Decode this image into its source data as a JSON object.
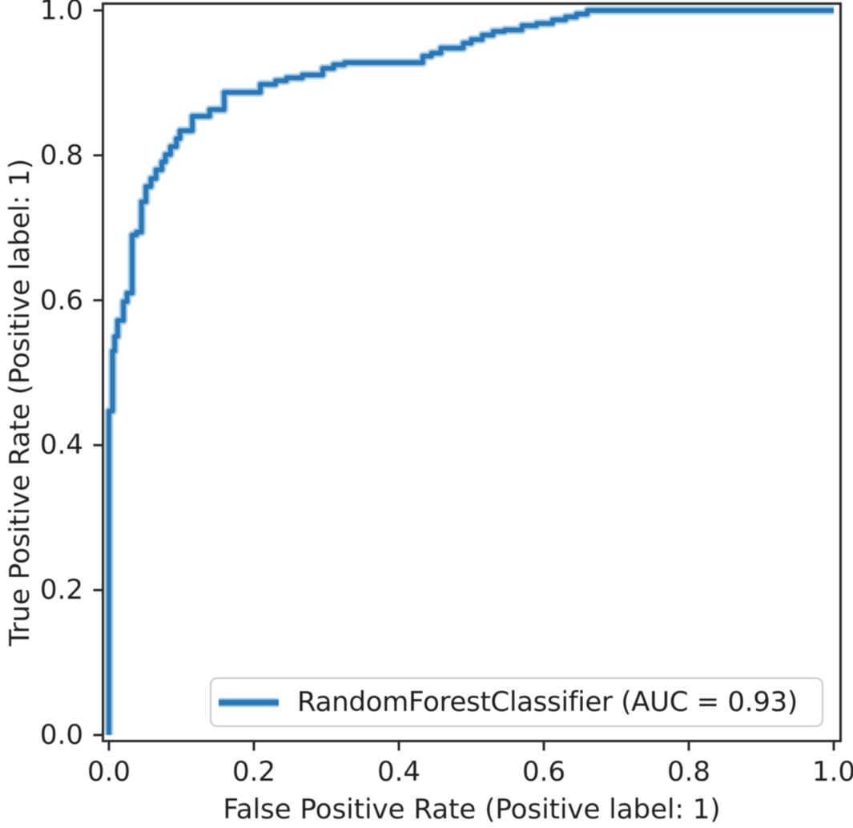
{
  "figure": {
    "background": "#ffffff",
    "text_color": "#1f1f1f",
    "spine_color": "#2a2a2a"
  },
  "chart_data": {
    "type": "line",
    "subtype": "roc-curve",
    "title": "",
    "xlabel": "False Positive Rate (Positive label: 1)",
    "ylabel": "True Positive Rate (Positive label: 1)",
    "xlim": [
      0,
      1
    ],
    "ylim": [
      0,
      1
    ],
    "grid": false,
    "x_tick_labels": [
      "0.0",
      "0.2",
      "0.4",
      "0.6",
      "0.8",
      "1.0"
    ],
    "y_tick_labels": [
      "0.0",
      "0.2",
      "0.4",
      "0.6",
      "0.8",
      "1.0"
    ],
    "legend": {
      "position": "lower right",
      "entries": [
        {
          "label": "RandomForestClassifier (AUC = 0.93)",
          "color": "#1f77b4"
        }
      ]
    },
    "series": [
      {
        "name": "RandomForestClassifier",
        "auc": 0.93,
        "color": "#1f77b4",
        "points": [
          [
            0.0,
            0.0
          ],
          [
            0.0,
            0.447
          ],
          [
            0.005,
            0.447
          ],
          [
            0.005,
            0.53
          ],
          [
            0.008,
            0.53
          ],
          [
            0.008,
            0.55
          ],
          [
            0.012,
            0.55
          ],
          [
            0.012,
            0.572
          ],
          [
            0.02,
            0.572
          ],
          [
            0.02,
            0.598
          ],
          [
            0.025,
            0.598
          ],
          [
            0.025,
            0.61
          ],
          [
            0.032,
            0.61
          ],
          [
            0.032,
            0.69
          ],
          [
            0.038,
            0.69
          ],
          [
            0.038,
            0.694
          ],
          [
            0.045,
            0.694
          ],
          [
            0.045,
            0.736
          ],
          [
            0.051,
            0.736
          ],
          [
            0.051,
            0.757
          ],
          [
            0.058,
            0.757
          ],
          [
            0.058,
            0.768
          ],
          [
            0.065,
            0.768
          ],
          [
            0.065,
            0.78
          ],
          [
            0.073,
            0.78
          ],
          [
            0.073,
            0.791
          ],
          [
            0.078,
            0.791
          ],
          [
            0.078,
            0.801
          ],
          [
            0.085,
            0.801
          ],
          [
            0.085,
            0.812
          ],
          [
            0.093,
            0.812
          ],
          [
            0.093,
            0.823
          ],
          [
            0.098,
            0.823
          ],
          [
            0.098,
            0.834
          ],
          [
            0.115,
            0.834
          ],
          [
            0.115,
            0.854
          ],
          [
            0.139,
            0.854
          ],
          [
            0.139,
            0.863
          ],
          [
            0.159,
            0.863
          ],
          [
            0.159,
            0.887
          ],
          [
            0.209,
            0.887
          ],
          [
            0.209,
            0.898
          ],
          [
            0.23,
            0.898
          ],
          [
            0.23,
            0.903
          ],
          [
            0.245,
            0.903
          ],
          [
            0.245,
            0.907
          ],
          [
            0.267,
            0.907
          ],
          [
            0.267,
            0.911
          ],
          [
            0.295,
            0.911
          ],
          [
            0.295,
            0.92
          ],
          [
            0.31,
            0.92
          ],
          [
            0.31,
            0.925
          ],
          [
            0.325,
            0.925
          ],
          [
            0.325,
            0.928
          ],
          [
            0.433,
            0.928
          ],
          [
            0.433,
            0.937
          ],
          [
            0.445,
            0.937
          ],
          [
            0.445,
            0.941
          ],
          [
            0.458,
            0.941
          ],
          [
            0.458,
            0.948
          ],
          [
            0.489,
            0.948
          ],
          [
            0.489,
            0.955
          ],
          [
            0.5,
            0.955
          ],
          [
            0.5,
            0.96
          ],
          [
            0.515,
            0.96
          ],
          [
            0.515,
            0.966
          ],
          [
            0.53,
            0.966
          ],
          [
            0.53,
            0.971
          ],
          [
            0.546,
            0.971
          ],
          [
            0.546,
            0.973
          ],
          [
            0.57,
            0.973
          ],
          [
            0.57,
            0.979
          ],
          [
            0.59,
            0.979
          ],
          [
            0.59,
            0.982
          ],
          [
            0.612,
            0.982
          ],
          [
            0.612,
            0.987
          ],
          [
            0.63,
            0.987
          ],
          [
            0.63,
            0.991
          ],
          [
            0.645,
            0.991
          ],
          [
            0.645,
            0.995
          ],
          [
            0.66,
            0.995
          ],
          [
            0.66,
            1.0
          ],
          [
            1.0,
            1.0
          ]
        ]
      }
    ]
  }
}
